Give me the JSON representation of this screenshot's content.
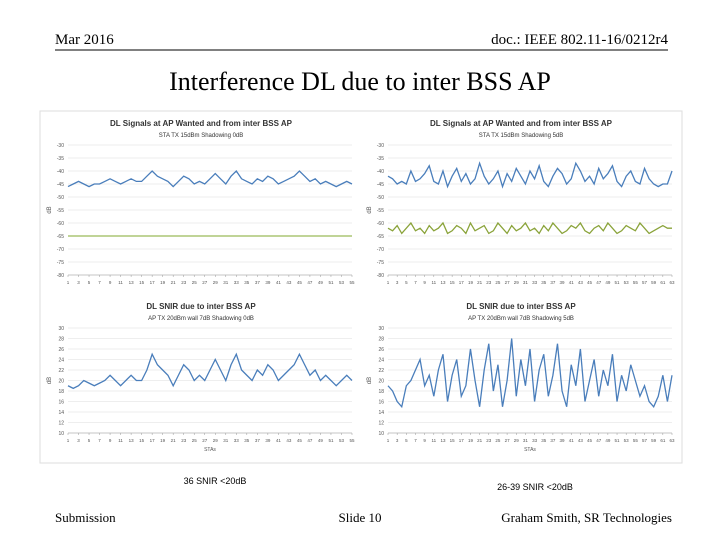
{
  "header": {
    "date": "Mar 2016",
    "doc": "doc.: IEEE 802.11-16/0212r4"
  },
  "title": "Interference DL due to inter BSS AP",
  "chart_data": [
    {
      "type": "line",
      "title": "DL Signals at AP Wanted and  from inter BSS AP",
      "subtitle": "STA TX 15dBm Shadowing 0dB",
      "ylabel": "dB",
      "x": [
        1,
        2,
        3,
        4,
        5,
        6,
        7,
        8,
        9,
        10,
        11,
        12,
        13,
        14,
        15,
        16,
        17,
        18,
        19,
        20,
        21,
        22,
        23,
        24,
        25,
        26,
        27,
        28,
        29,
        30,
        31,
        32,
        33,
        34,
        35,
        36,
        37,
        38,
        39,
        40,
        41,
        42,
        43,
        44,
        45,
        46,
        47,
        48,
        49,
        50,
        51,
        52,
        53,
        54,
        55
      ],
      "xlim": [
        1,
        55
      ],
      "xticks": [
        1,
        3,
        5,
        7,
        9,
        11,
        13,
        15,
        17,
        19,
        21,
        23,
        25,
        27,
        29,
        31,
        33,
        35,
        37,
        39,
        41,
        43,
        45,
        47,
        49,
        51,
        53,
        55
      ],
      "ylim": [
        -80,
        -30
      ],
      "yticks": [
        -30,
        -35,
        -40,
        -45,
        -50,
        -55,
        -60,
        -65,
        -70,
        -75,
        -80
      ],
      "grid": true,
      "series": [
        {
          "color": "#4a7ebb",
          "values": [
            -46,
            -45,
            -44,
            -45,
            -46,
            -45,
            -45,
            -44,
            -43,
            -44,
            -45,
            -44,
            -43,
            -44,
            -44,
            -42,
            -40,
            -42,
            -43,
            -44,
            -46,
            -44,
            -42,
            -43,
            -45,
            -44,
            -45,
            -43,
            -41,
            -43,
            -45,
            -42,
            -40,
            -43,
            -44,
            -45,
            -43,
            -44,
            -42,
            -43,
            -45,
            -44,
            -43,
            -42,
            -40,
            -42,
            -44,
            -43,
            -45,
            -44,
            -45,
            -46,
            -45,
            -44,
            -45
          ]
        },
        {
          "color": "#9bbb59",
          "values": [
            -65,
            -65,
            -65,
            -65,
            -65,
            -65,
            -65,
            -65,
            -65,
            -65,
            -65,
            -65,
            -65,
            -65,
            -65,
            -65,
            -65,
            -65,
            -65,
            -65,
            -65,
            -65,
            -65,
            -65,
            -65,
            -65,
            -65,
            -65,
            -65,
            -65,
            -65,
            -65,
            -65,
            -65,
            -65,
            -65,
            -65,
            -65,
            -65,
            -65,
            -65,
            -65,
            -65,
            -65,
            -65,
            -65,
            -65,
            -65,
            -65,
            -65,
            -65,
            -65,
            -65,
            -65,
            -65
          ]
        }
      ]
    },
    {
      "type": "line",
      "title": "DL Signals at AP Wanted and  from inter BSS AP",
      "subtitle": "STA TX 15dBm Shadowing 5dB",
      "ylabel": "dB",
      "x": [
        1,
        2,
        3,
        4,
        5,
        6,
        7,
        8,
        9,
        10,
        11,
        12,
        13,
        14,
        15,
        16,
        17,
        18,
        19,
        20,
        21,
        22,
        23,
        24,
        25,
        26,
        27,
        28,
        29,
        30,
        31,
        32,
        33,
        34,
        35,
        36,
        37,
        38,
        39,
        40,
        41,
        42,
        43,
        44,
        45,
        46,
        47,
        48,
        49,
        50,
        51,
        52,
        53,
        54,
        55,
        56,
        57,
        58,
        59,
        60,
        61,
        62,
        63
      ],
      "xlim": [
        1,
        63
      ],
      "xticks": [
        1,
        3,
        5,
        7,
        9,
        11,
        13,
        15,
        17,
        19,
        21,
        23,
        25,
        27,
        29,
        31,
        33,
        35,
        37,
        39,
        41,
        43,
        45,
        47,
        49,
        51,
        53,
        55,
        57,
        59,
        61,
        63
      ],
      "ylim": [
        -80,
        -30
      ],
      "yticks": [
        -30,
        -35,
        -40,
        -45,
        -50,
        -55,
        -60,
        -65,
        -70,
        -75,
        -80
      ],
      "grid": true,
      "series": [
        {
          "color": "#4a7ebb",
          "values": [
            -42,
            -43,
            -45,
            -44,
            -45,
            -40,
            -44,
            -43,
            -41,
            -38,
            -44,
            -45,
            -40,
            -46,
            -42,
            -39,
            -44,
            -41,
            -45,
            -43,
            -37,
            -42,
            -45,
            -43,
            -40,
            -46,
            -41,
            -44,
            -39,
            -42,
            -45,
            -40,
            -43,
            -38,
            -44,
            -46,
            -42,
            -39,
            -41,
            -45,
            -43,
            -37,
            -40,
            -44,
            -42,
            -45,
            -39,
            -43,
            -41,
            -38,
            -44,
            -46,
            -42,
            -40,
            -44,
            -45,
            -39,
            -43,
            -45,
            -46,
            -45,
            -45,
            -40
          ]
        },
        {
          "color": "#8aa33a",
          "values": [
            -62,
            -63,
            -61,
            -64,
            -62,
            -60,
            -63,
            -62,
            -64,
            -61,
            -63,
            -62,
            -60,
            -64,
            -63,
            -61,
            -62,
            -64,
            -60,
            -63,
            -62,
            -61,
            -64,
            -63,
            -60,
            -62,
            -64,
            -61,
            -63,
            -62,
            -60,
            -63,
            -62,
            -64,
            -61,
            -63,
            -60,
            -62,
            -64,
            -63,
            -61,
            -62,
            -60,
            -63,
            -64,
            -62,
            -61,
            -63,
            -60,
            -62,
            -64,
            -63,
            -61,
            -62,
            -63,
            -60,
            -62,
            -64,
            -63,
            -62,
            -61,
            -62,
            -62
          ]
        }
      ]
    },
    {
      "type": "line",
      "title": "DL SNIR due to inter BSS AP",
      "subtitle": "AP TX 20dBm wall 7dB Shadowing 0dB",
      "ylabel": "dB",
      "xlabel": "STAs",
      "x": [
        1,
        2,
        3,
        4,
        5,
        6,
        7,
        8,
        9,
        10,
        11,
        12,
        13,
        14,
        15,
        16,
        17,
        18,
        19,
        20,
        21,
        22,
        23,
        24,
        25,
        26,
        27,
        28,
        29,
        30,
        31,
        32,
        33,
        34,
        35,
        36,
        37,
        38,
        39,
        40,
        41,
        42,
        43,
        44,
        45,
        46,
        47,
        48,
        49,
        50,
        51,
        52,
        53,
        54,
        55
      ],
      "xlim": [
        1,
        55
      ],
      "xticks": [
        1,
        3,
        5,
        7,
        9,
        11,
        13,
        15,
        17,
        19,
        21,
        23,
        25,
        27,
        29,
        31,
        33,
        35,
        37,
        39,
        41,
        43,
        45,
        47,
        49,
        51,
        53,
        55
      ],
      "ylim": [
        10,
        30
      ],
      "yticks": [
        10,
        12,
        14,
        16,
        18,
        20,
        22,
        24,
        26,
        28,
        30
      ],
      "grid": true,
      "series": [
        {
          "color": "#4a7ebb",
          "values": [
            19,
            18.5,
            19,
            20,
            19.5,
            19,
            19.5,
            20,
            21,
            20,
            19,
            20,
            21,
            20,
            20,
            22,
            25,
            23,
            22,
            21,
            19,
            21,
            23,
            22,
            20,
            21,
            20,
            22,
            24,
            22,
            20,
            23,
            25,
            22,
            21,
            20,
            22,
            21,
            23,
            22,
            20,
            21,
            22,
            23,
            25,
            23,
            21,
            22,
            20,
            21,
            20,
            19,
            20,
            21,
            20
          ]
        }
      ]
    },
    {
      "type": "line",
      "title": "DL SNIR due to inter BSS AP",
      "subtitle": "AP TX 20dBm wall 7dB Shadowing 5dB",
      "ylabel": "dB",
      "xlabel": "STAs",
      "x": [
        1,
        2,
        3,
        4,
        5,
        6,
        7,
        8,
        9,
        10,
        11,
        12,
        13,
        14,
        15,
        16,
        17,
        18,
        19,
        20,
        21,
        22,
        23,
        24,
        25,
        26,
        27,
        28,
        29,
        30,
        31,
        32,
        33,
        34,
        35,
        36,
        37,
        38,
        39,
        40,
        41,
        42,
        43,
        44,
        45,
        46,
        47,
        48,
        49,
        50,
        51,
        52,
        53,
        54,
        55,
        56,
        57,
        58,
        59,
        60,
        61,
        62,
        63
      ],
      "xlim": [
        1,
        63
      ],
      "xticks": [
        1,
        3,
        5,
        7,
        9,
        11,
        13,
        15,
        17,
        19,
        21,
        23,
        25,
        27,
        29,
        31,
        33,
        35,
        37,
        39,
        41,
        43,
        45,
        47,
        49,
        51,
        53,
        55,
        57,
        59,
        61,
        63
      ],
      "ylim": [
        10,
        30
      ],
      "yticks": [
        10,
        12,
        14,
        16,
        18,
        20,
        22,
        24,
        26,
        28,
        30
      ],
      "grid": true,
      "series": [
        {
          "color": "#4a7ebb",
          "values": [
            19,
            18,
            16,
            15,
            19,
            20,
            22,
            24,
            19,
            21,
            17,
            22,
            25,
            16,
            21,
            24,
            17,
            19,
            26,
            20,
            15,
            22,
            27,
            18,
            23,
            15,
            20,
            28,
            17,
            24,
            19,
            26,
            16,
            22,
            25,
            17,
            21,
            27,
            18,
            15,
            23,
            19,
            26,
            16,
            20,
            24,
            17,
            22,
            19,
            25,
            16,
            21,
            18,
            23,
            20,
            17,
            19,
            16,
            15,
            17,
            21,
            16,
            21
          ]
        }
      ]
    }
  ],
  "notes": [
    "36 SNIR <20dB",
    "26-39 SNIR <20dB"
  ],
  "footer": {
    "left": "Submission",
    "center": "Slide 10",
    "right": "Graham Smith, SR Technologies"
  }
}
